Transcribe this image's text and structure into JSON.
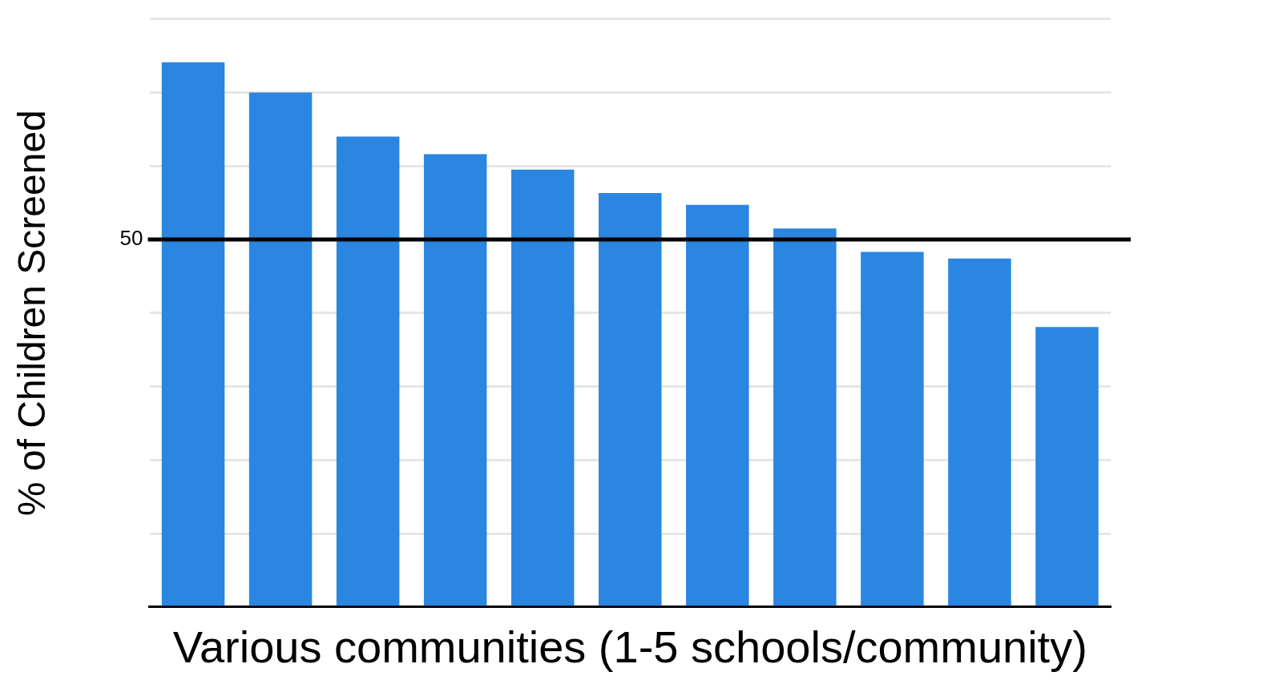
{
  "chart_data": {
    "type": "bar",
    "xlabel": "Various communities (1-5 schools/community)",
    "ylabel": "% of Children Screened",
    "categories": [
      null,
      null,
      null,
      null,
      null,
      null,
      null,
      null,
      null,
      null,
      null
    ],
    "values": [
      74.1,
      70.0,
      64.0,
      61.6,
      59.5,
      56.3,
      54.7,
      51.5,
      48.3,
      47.4,
      38.1
    ],
    "color": "#2a86e0",
    "grid": "y",
    "ylim": [
      0,
      80
    ],
    "yticks": [
      {
        "value": 0,
        "label": null
      },
      {
        "value": 10,
        "label": null
      },
      {
        "value": 20,
        "label": null
      },
      {
        "value": 30,
        "label": null
      },
      {
        "value": 40,
        "label": null
      },
      50,
      {
        "value": 60,
        "label": null
      },
      {
        "value": 70,
        "label": null
      },
      {
        "value": 80,
        "label": null
      }
    ],
    "ref_lines": [
      {
        "axis": "y",
        "value": 50,
        "color": "#000000"
      }
    ]
  }
}
